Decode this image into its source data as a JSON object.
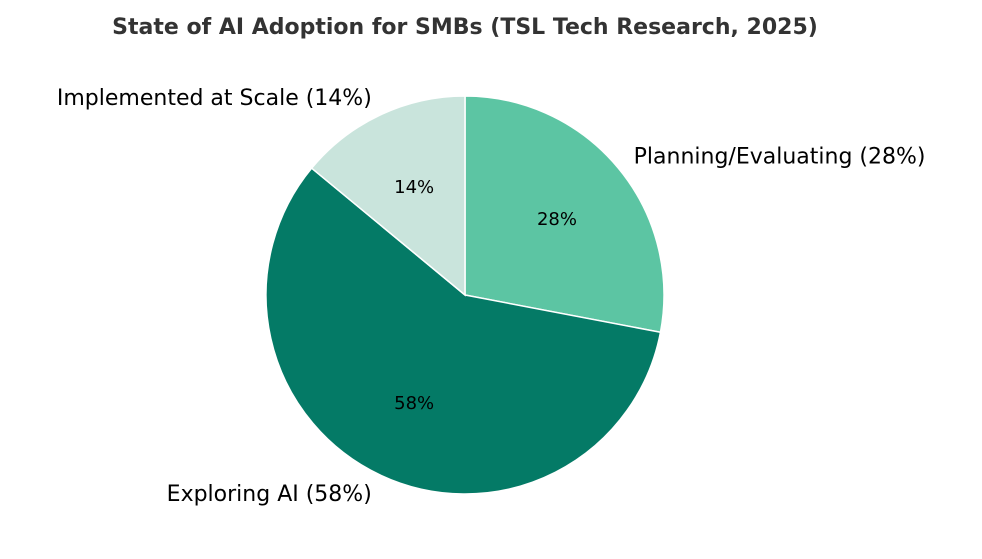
{
  "chart_data": {
    "type": "pie",
    "title": "State of AI Adoption for SMBs (TSL Tech Research, 2025)",
    "start_angle_deg": 90,
    "direction": "clockwise",
    "slices": [
      {
        "label": "Planning/Evaluating (28%)",
        "value": 28,
        "pct_label": "28%",
        "color": "#5cc5a3"
      },
      {
        "label": "Exploring AI (58%)",
        "value": 58,
        "pct_label": "58%",
        "color": "#047a66"
      },
      {
        "label": "Implemented at Scale (14%)",
        "value": 14,
        "pct_label": "14%",
        "color": "#c9e4dc"
      }
    ],
    "edge_color": "#ffffff"
  }
}
